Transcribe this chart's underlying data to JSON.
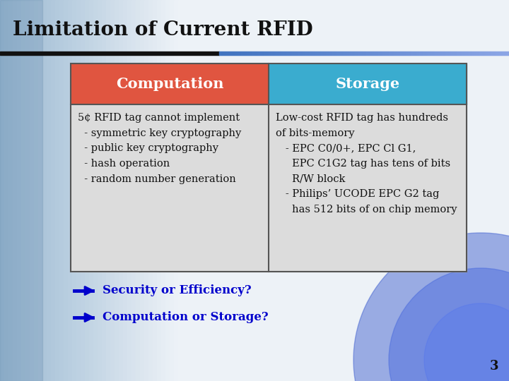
{
  "title": "Limitation of Current RFID",
  "title_fontsize": 20,
  "title_color": "#111111",
  "header_left_text": "Computation",
  "header_right_text": "Storage",
  "header_left_color": "#e05540",
  "header_right_color": "#3aaccf",
  "header_text_color": "#ffffff",
  "header_fontsize": 15,
  "cell_bg_color": "#dcdcdc",
  "left_cell_text": "5¢ RFID tag cannot implement\n  - symmetric key cryptography\n  - public key cryptography\n  - hash operation\n  - random number generation",
  "right_cell_text": "Low-cost RFID tag has hundreds\nof bits-memory\n   - EPC C0/0+, EPC Cl G1,\n     EPC C1G2 tag has tens of bits\n     R/W block\n   - Philips’ UCODE EPC G2 tag\n     has 512 bits of on chip memory",
  "cell_fontsize": 10.5,
  "cell_text_color": "#111111",
  "bullet1_text": "Security or Efficiency?",
  "bullet2_text": "Computation or Storage?",
  "bullet_fontsize": 12,
  "bullet_color": "#0000cc",
  "arrow_color": "#0000cc",
  "page_number": "3"
}
